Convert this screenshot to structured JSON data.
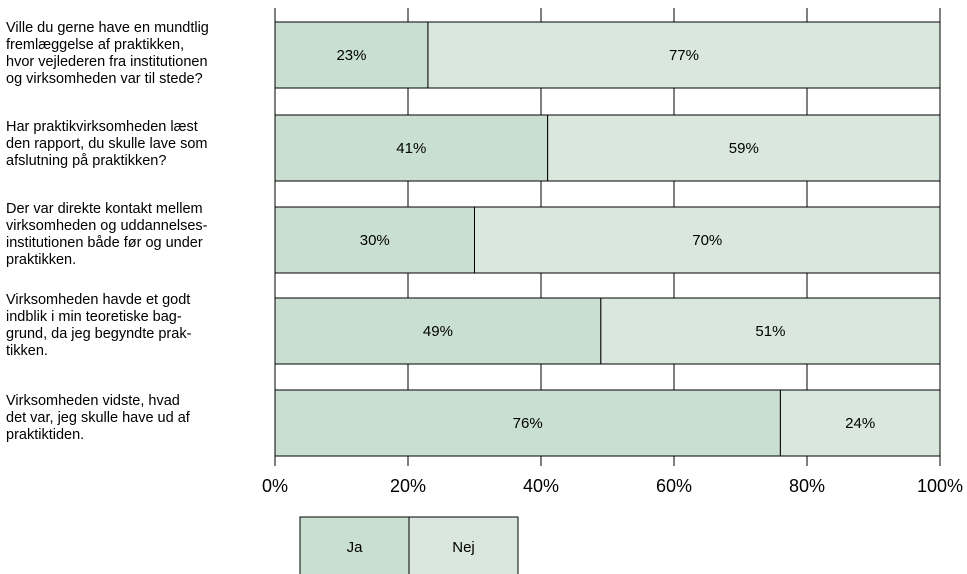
{
  "chart_data": {
    "type": "bar",
    "orientation": "horizontal",
    "stacked": true,
    "percent": true,
    "categories": [
      [
        "Ville du gerne have en mundtlig",
        "fremlæggelse af praktikken,",
        "hvor vejlederen fra institutionen",
        "og virksomheden var til stede?"
      ],
      [
        "Har praktikvirksomheden læst",
        "den rapport, du skulle lave som",
        "afslutning på praktikken?"
      ],
      [
        "Der var direkte kontakt mellem",
        "virksomheden og uddannelses-",
        "institutionen både før og under",
        "praktikken."
      ],
      [
        "Virksomheden havde et godt",
        "indblik i min teoretiske bag-",
        "grund, da jeg begyndte prak-",
        "tikken."
      ],
      [
        "Virksomheden vidste, hvad",
        "det var, jeg skulle have ud af",
        "praktiktiden."
      ]
    ],
    "series": [
      {
        "name": "Ja",
        "color": "#c9dfd1",
        "values": [
          23,
          41,
          30,
          49,
          76
        ],
        "labels": [
          "23%",
          "41%",
          "30%",
          "49%",
          "76%"
        ]
      },
      {
        "name": "Nej",
        "color": "#d9e7df",
        "values": [
          77,
          59,
          70,
          51,
          24
        ],
        "labels": [
          "77%",
          "59%",
          "70%",
          "51%",
          "24%"
        ]
      }
    ],
    "xlim": [
      0,
      100
    ],
    "xticks": [
      "0%",
      "20%",
      "40%",
      "60%",
      "80%",
      "100%"
    ],
    "grid": true,
    "legend_position": "bottom"
  }
}
